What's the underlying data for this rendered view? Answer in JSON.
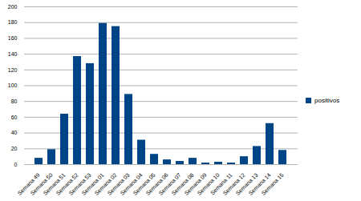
{
  "chart_data": {
    "type": "bar",
    "categories": [
      "Semana 49",
      "Semana 50",
      "Semana 51",
      "Semana 52",
      "Semana 53",
      "Semana 01",
      "Semana 02",
      "Semana 03",
      "Semana 04",
      "Semana 05",
      "Semana 06",
      "Semana 07",
      "Semana 08",
      "Semana 09",
      "Semana 10",
      "Semana 11",
      "Semana 12",
      "Semana 13",
      "Semana 14",
      "Semana 15"
    ],
    "series": [
      {
        "name": "positivos",
        "color": "#004586",
        "values": [
          8,
          19,
          64,
          137,
          128,
          179,
          175,
          89,
          31,
          13,
          6,
          4,
          8,
          2,
          3,
          2,
          10,
          23,
          52,
          18
        ]
      }
    ],
    "ylim": [
      0,
      200
    ],
    "yticks": [
      0,
      20,
      40,
      60,
      80,
      100,
      120,
      140,
      160,
      180,
      200
    ],
    "grid": true,
    "legend": "right"
  }
}
